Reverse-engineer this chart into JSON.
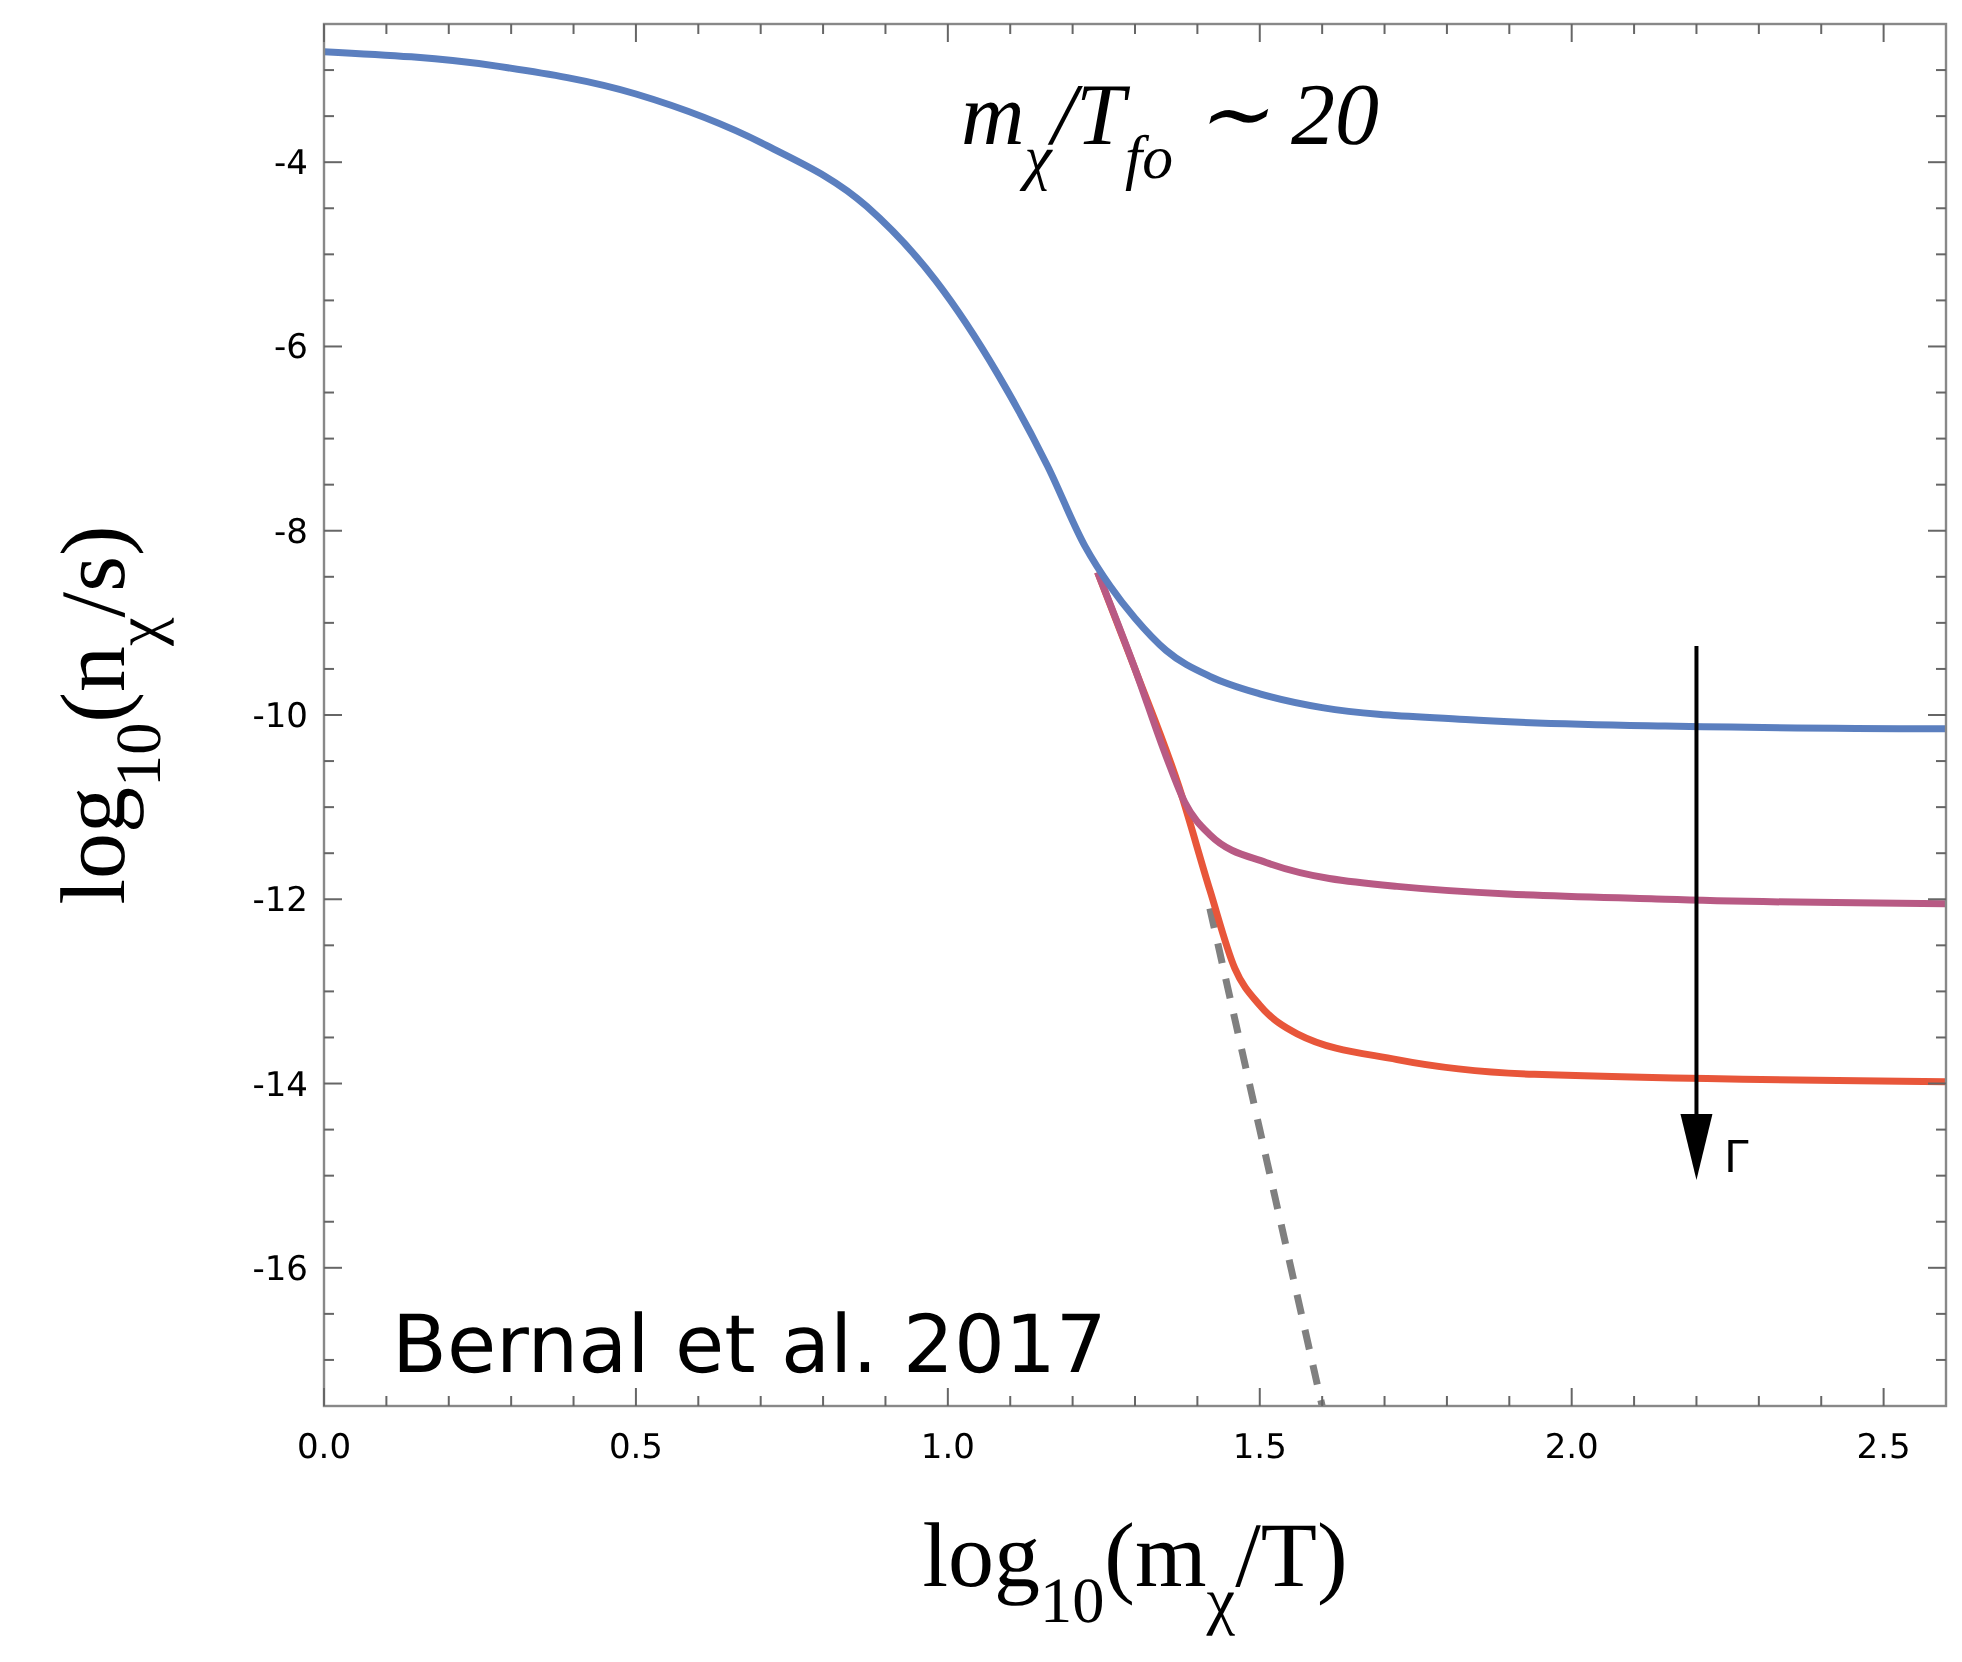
{
  "chart_data": {
    "type": "line",
    "xlabel": "log$_{10}$(m$_{χ}$/T)",
    "ylabel": "log$_{10}$(n$_{χ}$/s)",
    "xlim": [
      0,
      2.6
    ],
    "ylim": [
      -17.5,
      -2.5
    ],
    "xticks": [
      {
        "value": 0,
        "label": "0.0"
      },
      {
        "value": 0.1,
        "label": null
      },
      {
        "value": 0.2,
        "label": null
      },
      {
        "value": 0.3,
        "label": null
      },
      {
        "value": 0.4,
        "label": null
      },
      {
        "value": 0.5,
        "label": "0.5"
      },
      {
        "value": 0.6,
        "label": null
      },
      {
        "value": 0.7,
        "label": null
      },
      {
        "value": 0.8,
        "label": null
      },
      {
        "value": 0.9,
        "label": null
      },
      {
        "value": 1,
        "label": "1.0"
      },
      {
        "value": 1.1,
        "label": null
      },
      {
        "value": 1.2,
        "label": null
      },
      {
        "value": 1.3,
        "label": null
      },
      {
        "value": 1.4,
        "label": null
      },
      {
        "value": 1.5,
        "label": "1.5"
      },
      {
        "value": 1.6,
        "label": null
      },
      {
        "value": 1.7,
        "label": null
      },
      {
        "value": 1.8,
        "label": null
      },
      {
        "value": 1.9,
        "label": null
      },
      {
        "value": 2,
        "label": "2.0"
      },
      {
        "value": 2.1,
        "label": null
      },
      {
        "value": 2.2,
        "label": null
      },
      {
        "value": 2.3,
        "label": null
      },
      {
        "value": 2.4,
        "label": null
      },
      {
        "value": 2.5,
        "label": "2.5"
      }
    ],
    "yticks": [
      {
        "value": -17,
        "label": null
      },
      {
        "value": -16.5,
        "label": null
      },
      {
        "value": -16,
        "label": "-16"
      },
      {
        "value": -15.5,
        "label": null
      },
      {
        "value": -15,
        "label": null
      },
      {
        "value": -14.5,
        "label": null
      },
      {
        "value": -14,
        "label": "-14"
      },
      {
        "value": -13.5,
        "label": null
      },
      {
        "value": -13,
        "label": null
      },
      {
        "value": -12.5,
        "label": null
      },
      {
        "value": -12,
        "label": "-12"
      },
      {
        "value": -11.5,
        "label": null
      },
      {
        "value": -11,
        "label": null
      },
      {
        "value": -10.5,
        "label": null
      },
      {
        "value": -10,
        "label": "-10"
      },
      {
        "value": -9.5,
        "label": null
      },
      {
        "value": -9,
        "label": null
      },
      {
        "value": -8.5,
        "label": null
      },
      {
        "value": -8,
        "label": "-8"
      },
      {
        "value": -7.5,
        "label": null
      },
      {
        "value": -7,
        "label": null
      },
      {
        "value": -6.5,
        "label": null
      },
      {
        "value": -6,
        "label": "-6"
      },
      {
        "value": -5.5,
        "label": null
      },
      {
        "value": -5,
        "label": null
      },
      {
        "value": -4.5,
        "label": null
      },
      {
        "value": -4,
        "label": "-4"
      },
      {
        "value": -3.5,
        "label": null
      },
      {
        "value": -3,
        "label": null
      }
    ],
    "grid": false,
    "series": [
      {
        "color": "#808080",
        "line_style": "dashed",
        "x": [
          1.42,
          1.5,
          1.6
        ],
        "values": [
          -12.1,
          -14.5,
          -17.5
        ]
      },
      {
        "color": "#e8563a",
        "x": [
          1.24,
          1.3,
          1.37,
          1.42,
          1.46,
          1.5,
          1.56,
          1.72,
          1.94,
          2.6
        ],
        "values": [
          -8.45,
          -9.5,
          -10.77,
          -11.9,
          -12.75,
          -13.15,
          -13.46,
          -13.74,
          -13.9,
          -13.98
        ]
      },
      {
        "color": "#b85a84",
        "x": [
          1.24,
          1.3,
          1.35,
          1.38,
          1.42,
          1.51,
          1.72,
          2.15,
          2.6
        ],
        "values": [
          -8.45,
          -9.5,
          -10.45,
          -10.95,
          -11.3,
          -11.6,
          -11.86,
          -12,
          -12.05
        ]
      },
      {
        "color": "#5b7fbf",
        "x": [
          0,
          0.28,
          0.5,
          0.71,
          0.87,
          0.98,
          1.08,
          1.16,
          1.22,
          1.26,
          1.3,
          1.35,
          1.42,
          1.5,
          1.6,
          1.83,
          2.15,
          2.6
        ],
        "values": [
          -2.8,
          -2.96,
          -3.26,
          -3.82,
          -4.48,
          -5.28,
          -6.3,
          -7.3,
          -8.17,
          -8.6,
          -8.95,
          -9.3,
          -9.58,
          -9.77,
          -9.92,
          -10.05,
          -10.12,
          -10.15
        ]
      }
    ],
    "annotations": [
      "m$_{χ}$/T$_{fo}$ ∼ 20",
      "Bernal et al. 2017",
      "Γ"
    ]
  }
}
